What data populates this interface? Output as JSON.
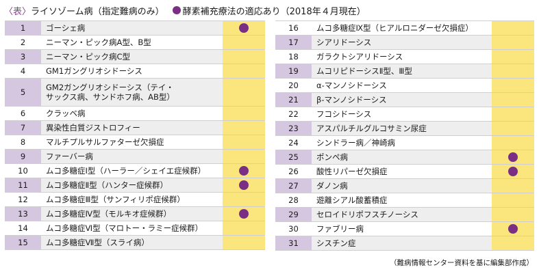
{
  "header": {
    "table_tag": "〈表〉",
    "title": "ライソゾーム病（指定難病のみ）",
    "legend_label": "酵素補充療法の適応あり（2018年４月現在）"
  },
  "left_rows": [
    {
      "no": "1",
      "name": "ゴーシェ病",
      "ert": true
    },
    {
      "no": "2",
      "name": "ニーマン・ピック病A型、B型",
      "ert": false
    },
    {
      "no": "3",
      "name": "ニーマン・ピック病C型",
      "ert": false
    },
    {
      "no": "4",
      "name": "GM1ガングリオシドーシス",
      "ert": false
    },
    {
      "no": "5",
      "name": "GM2ガングリオシドーシス（テイ・サックス病、サンドホフ病、AB型）",
      "ert": false
    },
    {
      "no": "6",
      "name": "クラッベ病",
      "ert": false
    },
    {
      "no": "7",
      "name": "異染性白質ジストロフィー",
      "ert": false
    },
    {
      "no": "8",
      "name": "マルチプルサルファターゼ欠損症",
      "ert": false
    },
    {
      "no": "9",
      "name": "ファーバー病",
      "ert": false
    },
    {
      "no": "10",
      "name": "ムコ多糖症Ⅰ型（ハーラー／シェイエ症候群）",
      "ert": true
    },
    {
      "no": "11",
      "name": "ムコ多糖症Ⅱ型（ハンター症候群）",
      "ert": true
    },
    {
      "no": "12",
      "name": "ムコ多糖症Ⅲ型（サンフィリポ症候群）",
      "ert": false
    },
    {
      "no": "13",
      "name": "ムコ多糖症Ⅳ型（モルキオ症候群）",
      "ert": true
    },
    {
      "no": "14",
      "name": "ムコ多糖症Ⅵ型（マロトー・ラミー症候群）",
      "ert": false
    },
    {
      "no": "15",
      "name": "ムコ多糖症Ⅶ型（スライ病）",
      "ert": false
    }
  ],
  "right_rows": [
    {
      "no": "16",
      "name": "ムコ多糖症Ⅸ型（ヒアルロニダーゼ欠損症）",
      "ert": false
    },
    {
      "no": "17",
      "name": "シアリドーシス",
      "ert": false
    },
    {
      "no": "18",
      "name": "ガラクトシアリドーシス",
      "ert": false
    },
    {
      "no": "19",
      "name": "ムコリピドーシスⅡ型、Ⅲ型",
      "ert": false
    },
    {
      "no": "20",
      "name": "α-マンノシドーシス",
      "ert": false
    },
    {
      "no": "21",
      "name": "β-マンノシドーシス",
      "ert": false
    },
    {
      "no": "22",
      "name": "フコシドーシス",
      "ert": false
    },
    {
      "no": "23",
      "name": "アスパルチルグルコサミン尿症",
      "ert": false
    },
    {
      "no": "24",
      "name": "シンドラー病／神崎病",
      "ert": false
    },
    {
      "no": "25",
      "name": "ポンペ病",
      "ert": true
    },
    {
      "no": "26",
      "name": "酸性リパーゼ欠損症",
      "ert": true
    },
    {
      "no": "27",
      "name": "ダノン病",
      "ert": false
    },
    {
      "no": "28",
      "name": "遊離シアル酸蓄積症",
      "ert": false
    },
    {
      "no": "29",
      "name": "セロイドリポフスチノーシス",
      "ert": false
    },
    {
      "no": "30",
      "name": "ファブリー病",
      "ert": true
    },
    {
      "no": "31",
      "name": "シスチン症",
      "ert": false
    }
  ],
  "source_note": "（難病情報センター資料を基に編集部作成）",
  "colors": {
    "number_cell": "#d6c7e0",
    "name_cell_shaded": "#eeeeee",
    "mark_column": "#fbe67e",
    "dot": "#7a2f85"
  }
}
